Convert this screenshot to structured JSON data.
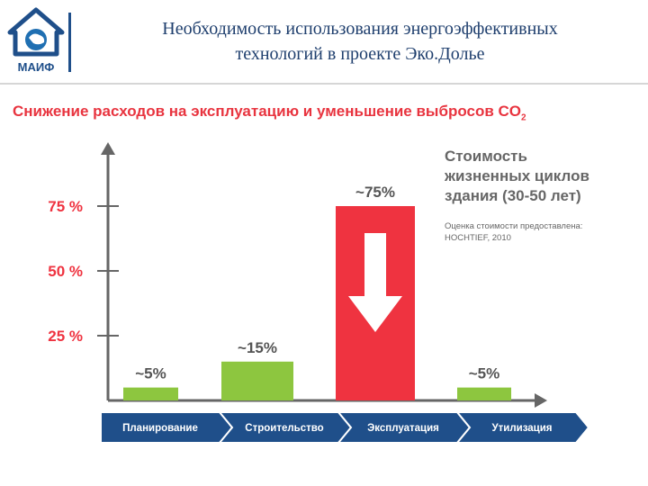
{
  "header": {
    "title_line1": "Необходимость использования энергоэффективных",
    "title_line2": "технологий в проекте Эко.Долье",
    "logo_text": "МАИФ"
  },
  "subtitle": {
    "text": "Снижение расходов на эксплуатацию и уменьшение выбросов CO",
    "subscript": "2"
  },
  "note": {
    "title_line1": "Стоимость",
    "title_line2": "жизненных циклов",
    "title_line3": "здания  (30-50 лет)",
    "source_line1": "Оценка стоимости предоставлена:",
    "source_line2": "HOCHTIEF, 2010"
  },
  "colors": {
    "green": "#8dc63f",
    "red": "#ef3340",
    "navy": "#1f4f8a",
    "axis": "#666666",
    "tick_label": "#ef3340"
  },
  "chart_data": {
    "type": "bar",
    "categories": [
      "Планирование",
      "Строительство",
      "Эксплуатация",
      "Утилизация"
    ],
    "values": [
      5,
      15,
      75,
      5
    ],
    "data_labels": [
      "~5%",
      "~15%",
      "~75%",
      "~5%"
    ],
    "highlight_index": 2,
    "ylim": [
      0,
      100
    ],
    "yticks": [
      25,
      50,
      75
    ],
    "ytick_labels": [
      "25 %",
      "50 %",
      "75 %"
    ],
    "arrow_on_highlight": "down-arrow-icon"
  }
}
